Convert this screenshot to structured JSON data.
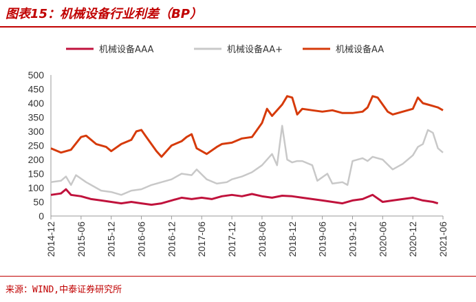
{
  "title": "图表15：机械设备行业利差（BP）",
  "source": "来源：WIND,中泰证券研究所",
  "colors": {
    "AAA": "#c0123c",
    "AAplus": "#c8c8c8",
    "AA": "#d63a0a",
    "accent": "#c00000"
  },
  "chart_data": {
    "type": "line",
    "title": "机械设备行业利差（BP）",
    "xlabel": "",
    "ylabel": "",
    "ylim": [
      0,
      500
    ],
    "yticks": [
      0,
      50,
      100,
      150,
      200,
      250,
      300,
      350,
      400,
      450,
      500
    ],
    "xlim": [
      "2014-12",
      "2021-06"
    ],
    "xticks": [
      "2014-12",
      "2015-06",
      "2015-12",
      "2016-06",
      "2016-12",
      "2017-06",
      "2017-12",
      "2018-06",
      "2018-12",
      "2019-06",
      "2019-12",
      "2020-06",
      "2020-12",
      "2021-06"
    ],
    "legend_position": "top",
    "grid": false,
    "series": [
      {
        "name": "机械设备AAA",
        "color": "#c0123c",
        "points": [
          [
            "2014-12",
            75
          ],
          [
            "2015-02",
            80
          ],
          [
            "2015-03",
            95
          ],
          [
            "2015-04",
            75
          ],
          [
            "2015-06",
            70
          ],
          [
            "2015-08",
            60
          ],
          [
            "2015-10",
            55
          ],
          [
            "2015-12",
            50
          ],
          [
            "2016-02",
            45
          ],
          [
            "2016-04",
            50
          ],
          [
            "2016-06",
            45
          ],
          [
            "2016-08",
            40
          ],
          [
            "2016-10",
            45
          ],
          [
            "2016-12",
            55
          ],
          [
            "2017-02",
            65
          ],
          [
            "2017-04",
            60
          ],
          [
            "2017-06",
            65
          ],
          [
            "2017-08",
            60
          ],
          [
            "2017-10",
            70
          ],
          [
            "2017-12",
            75
          ],
          [
            "2018-02",
            70
          ],
          [
            "2018-04",
            78
          ],
          [
            "2018-06",
            70
          ],
          [
            "2018-08",
            65
          ],
          [
            "2018-10",
            72
          ],
          [
            "2018-12",
            70
          ],
          [
            "2019-02",
            65
          ],
          [
            "2019-04",
            60
          ],
          [
            "2019-06",
            55
          ],
          [
            "2019-08",
            50
          ],
          [
            "2019-10",
            45
          ],
          [
            "2019-12",
            55
          ],
          [
            "2020-02",
            60
          ],
          [
            "2020-04",
            75
          ],
          [
            "2020-06",
            50
          ],
          [
            "2020-08",
            55
          ],
          [
            "2020-10",
            60
          ],
          [
            "2020-12",
            65
          ],
          [
            "2021-02",
            55
          ],
          [
            "2021-04",
            50
          ],
          [
            "2021-05",
            45
          ]
        ]
      },
      {
        "name": "机械设备AA+",
        "color": "#c8c8c8",
        "points": [
          [
            "2014-12",
            120
          ],
          [
            "2015-02",
            125
          ],
          [
            "2015-03",
            140
          ],
          [
            "2015-04",
            110
          ],
          [
            "2015-05",
            145
          ],
          [
            "2015-07",
            120
          ],
          [
            "2015-09",
            100
          ],
          [
            "2015-10",
            90
          ],
          [
            "2015-12",
            85
          ],
          [
            "2016-02",
            75
          ],
          [
            "2016-04",
            90
          ],
          [
            "2016-06",
            95
          ],
          [
            "2016-08",
            110
          ],
          [
            "2016-10",
            120
          ],
          [
            "2016-12",
            130
          ],
          [
            "2017-02",
            150
          ],
          [
            "2017-04",
            145
          ],
          [
            "2017-05",
            165
          ],
          [
            "2017-07",
            130
          ],
          [
            "2017-09",
            115
          ],
          [
            "2017-11",
            120
          ],
          [
            "2017-12",
            130
          ],
          [
            "2018-02",
            140
          ],
          [
            "2018-04",
            155
          ],
          [
            "2018-06",
            180
          ],
          [
            "2018-08",
            220
          ],
          [
            "2018-09",
            180
          ],
          [
            "2018-10",
            320
          ],
          [
            "2018-11",
            200
          ],
          [
            "2018-12",
            190
          ],
          [
            "2019-01",
            195
          ],
          [
            "2019-02",
            195
          ],
          [
            "2019-04",
            180
          ],
          [
            "2019-05",
            125
          ],
          [
            "2019-07",
            150
          ],
          [
            "2019-08",
            115
          ],
          [
            "2019-10",
            120
          ],
          [
            "2019-11",
            110
          ],
          [
            "2019-12",
            195
          ],
          [
            "2020-02",
            205
          ],
          [
            "2020-03",
            195
          ],
          [
            "2020-04",
            210
          ],
          [
            "2020-06",
            200
          ],
          [
            "2020-08",
            165
          ],
          [
            "2020-10",
            185
          ],
          [
            "2020-12",
            215
          ],
          [
            "2021-01",
            245
          ],
          [
            "2021-02",
            255
          ],
          [
            "2021-03",
            305
          ],
          [
            "2021-04",
            295
          ],
          [
            "2021-05",
            240
          ],
          [
            "2021-06",
            225
          ]
        ]
      },
      {
        "name": "机械设备AA",
        "color": "#d63a0a",
        "points": [
          [
            "2014-12",
            240
          ],
          [
            "2015-02",
            225
          ],
          [
            "2015-04",
            235
          ],
          [
            "2015-06",
            280
          ],
          [
            "2015-07",
            285
          ],
          [
            "2015-09",
            255
          ],
          [
            "2015-11",
            245
          ],
          [
            "2015-12",
            230
          ],
          [
            "2016-02",
            255
          ],
          [
            "2016-04",
            270
          ],
          [
            "2016-05",
            300
          ],
          [
            "2016-06",
            305
          ],
          [
            "2016-07",
            280
          ],
          [
            "2016-09",
            230
          ],
          [
            "2016-10",
            210
          ],
          [
            "2016-12",
            250
          ],
          [
            "2017-02",
            265
          ],
          [
            "2017-03",
            280
          ],
          [
            "2017-04",
            290
          ],
          [
            "2017-05",
            240
          ],
          [
            "2017-07",
            220
          ],
          [
            "2017-09",
            245
          ],
          [
            "2017-10",
            255
          ],
          [
            "2017-12",
            260
          ],
          [
            "2018-02",
            275
          ],
          [
            "2018-04",
            280
          ],
          [
            "2018-06",
            330
          ],
          [
            "2018-07",
            380
          ],
          [
            "2018-08",
            355
          ],
          [
            "2018-10",
            395
          ],
          [
            "2018-11",
            425
          ],
          [
            "2018-12",
            420
          ],
          [
            "2019-01",
            360
          ],
          [
            "2019-02",
            380
          ],
          [
            "2019-04",
            375
          ],
          [
            "2019-06",
            370
          ],
          [
            "2019-08",
            375
          ],
          [
            "2019-10",
            365
          ],
          [
            "2019-12",
            365
          ],
          [
            "2020-02",
            370
          ],
          [
            "2020-03",
            385
          ],
          [
            "2020-04",
            425
          ],
          [
            "2020-05",
            420
          ],
          [
            "2020-06",
            395
          ],
          [
            "2020-07",
            370
          ],
          [
            "2020-08",
            360
          ],
          [
            "2020-10",
            370
          ],
          [
            "2020-12",
            380
          ],
          [
            "2021-01",
            420
          ],
          [
            "2021-02",
            400
          ],
          [
            "2021-03",
            395
          ],
          [
            "2021-04",
            390
          ],
          [
            "2021-05",
            385
          ],
          [
            "2021-06",
            375
          ]
        ]
      }
    ]
  }
}
